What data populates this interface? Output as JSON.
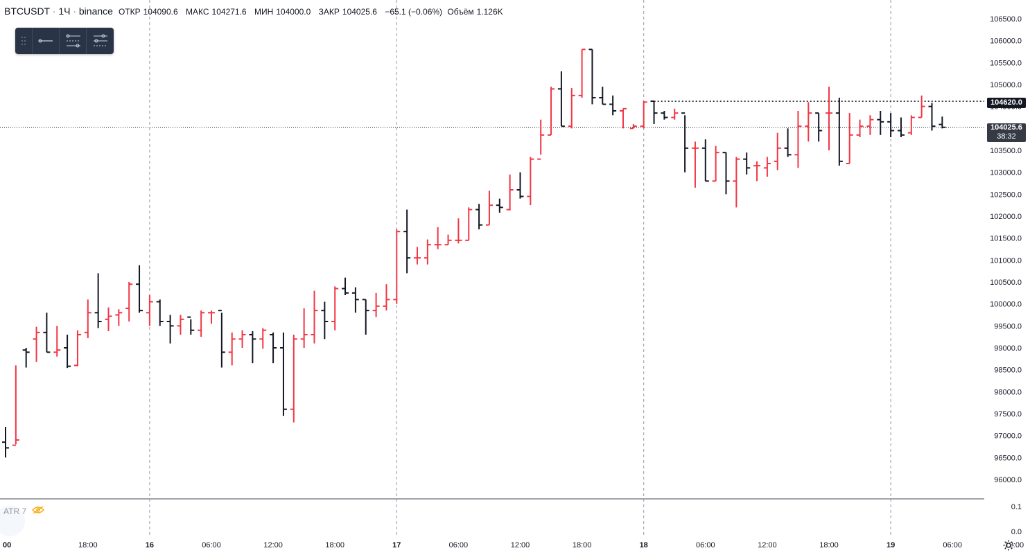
{
  "legend": {
    "symbol": "BTCUSDT",
    "interval": "1Ч",
    "exchange": "binance",
    "open_label": "ОТКР",
    "open": "104090.6",
    "high_label": "МАКС",
    "high": "104271.6",
    "low_label": "МИН",
    "low": "104000.0",
    "close_label": "ЗАКР",
    "close": "104025.6",
    "change": "−65.1 (−0.06%)",
    "volume_label": "Объём",
    "volume": "1.126K"
  },
  "toolbar": {
    "items": [
      "grip-icon",
      "horizontal-line-icon",
      "fib-levels-icon",
      "fib-extension-icon"
    ]
  },
  "indicator": {
    "label": "ATR 7"
  },
  "price_tags": {
    "high_line": "104620.0",
    "last_price": "104025.6",
    "countdown": "38:32"
  },
  "colors": {
    "up": "#f23645",
    "down": "#131722",
    "grid": "#9598a1",
    "axis_text": "#131722"
  },
  "chart_data": {
    "type": "ohlc-bars",
    "ylim": [
      95600,
      106800
    ],
    "yticks": [
      96000,
      96500,
      97000,
      97500,
      98000,
      98500,
      99000,
      99500,
      100000,
      100500,
      101000,
      101500,
      102000,
      102500,
      103000,
      103500,
      104000,
      104500,
      105000,
      105500,
      106000,
      106500
    ],
    "ytick_labels": [
      "96000.0",
      "96500.0",
      "97000.0",
      "97500.0",
      "98000.0",
      "98500.0",
      "99000.0",
      "99500.0",
      "100000.0",
      "100500.0",
      "101000.0",
      "101500.0",
      "102000.0",
      "102500.0",
      "103000.0",
      "103500.0",
      "104000.0",
      "104500.0",
      "105000.0",
      "105500.0",
      "106000.0",
      "106500.0"
    ],
    "indicator_ticks": [
      "0.1",
      "0.0"
    ],
    "xtick_labels": [
      "00",
      "18:00",
      "16",
      "06:00",
      "12:00",
      "18:00",
      "17",
      "06:00",
      "12:00",
      "18:00",
      "18",
      "06:00",
      "12:00",
      "18:00",
      "19",
      "06:00",
      "12:00"
    ],
    "xtick_bar_index": [
      -0.6,
      8,
      14,
      20,
      26,
      32,
      38,
      44,
      50,
      56,
      62,
      68,
      74,
      80,
      86,
      92,
      98
    ],
    "day_separators_bar_index": [
      14,
      38,
      62,
      86
    ],
    "high_line": 104620,
    "last_price": 104025.6,
    "bars": [
      [
        96850,
        97200,
        96500,
        96720
      ],
      [
        96780,
        98600,
        96800,
        96900
      ],
      [
        98950,
        99000,
        98550,
        98900
      ],
      [
        99200,
        99480,
        98680,
        99350
      ],
      [
        99350,
        99800,
        98900,
        98900
      ],
      [
        98900,
        99500,
        98800,
        98950
      ],
      [
        99000,
        99300,
        98540,
        98580
      ],
      [
        98600,
        99400,
        98580,
        99300
      ],
      [
        99350,
        100100,
        99220,
        99800
      ],
      [
        99800,
        100700,
        99450,
        99600
      ],
      [
        99650,
        99920,
        99380,
        99720
      ],
      [
        99750,
        99880,
        99500,
        99800
      ],
      [
        99900,
        100500,
        99600,
        100450
      ],
      [
        100450,
        100880,
        99800,
        99850
      ],
      [
        99800,
        100200,
        99500,
        100050
      ],
      [
        100050,
        100100,
        99500,
        99600
      ],
      [
        99600,
        99750,
        99100,
        99500
      ],
      [
        99500,
        99750,
        99300,
        99650
      ],
      [
        99700,
        99650,
        99300,
        99400
      ],
      [
        99400,
        99850,
        99250,
        99800
      ],
      [
        99800,
        99850,
        99550,
        99800
      ],
      [
        99850,
        99800,
        98550,
        98900
      ],
      [
        98900,
        99350,
        98600,
        99200
      ],
      [
        99200,
        99400,
        99000,
        99300
      ],
      [
        99300,
        99380,
        98650,
        99200
      ],
      [
        99200,
        99450,
        98980,
        99400
      ],
      [
        99300,
        99350,
        98650,
        99000
      ],
      [
        99000,
        99350,
        97450,
        97600
      ],
      [
        97600,
        99300,
        97300,
        99200
      ],
      [
        99200,
        99900,
        99000,
        99300
      ],
      [
        99300,
        100300,
        99100,
        99850
      ],
      [
        99850,
        100050,
        99200,
        99600
      ],
      [
        99600,
        100400,
        99400,
        100350
      ],
      [
        100350,
        100600,
        100200,
        100250
      ],
      [
        100250,
        100380,
        99800,
        100100
      ],
      [
        100100,
        100100,
        99300,
        99850
      ],
      [
        99850,
        100250,
        99700,
        99950
      ],
      [
        99950,
        100450,
        99850,
        100100
      ],
      [
        100100,
        101700,
        100000,
        101650
      ],
      [
        101650,
        102150,
        100700,
        101050
      ],
      [
        101050,
        101300,
        100900,
        101050
      ],
      [
        101050,
        101470,
        100900,
        101350
      ],
      [
        101350,
        101750,
        101250,
        101350
      ],
      [
        101350,
        101580,
        101350,
        101450
      ],
      [
        101450,
        101950,
        101380,
        101450
      ],
      [
        101450,
        102200,
        101450,
        102150
      ],
      [
        102150,
        102280,
        101700,
        101800
      ],
      [
        101800,
        102580,
        101800,
        102250
      ],
      [
        102250,
        102400,
        102080,
        102200
      ],
      [
        102150,
        102950,
        102130,
        102600
      ],
      [
        102600,
        103000,
        102400,
        102450
      ],
      [
        102450,
        103350,
        102250,
        103300
      ],
      [
        103300,
        104200,
        103400,
        103850
      ],
      [
        103850,
        104950,
        103850,
        104900
      ],
      [
        104900,
        105300,
        104050,
        104050
      ],
      [
        104050,
        104920,
        104000,
        104750
      ],
      [
        104750,
        105800,
        104700,
        105800
      ],
      [
        105800,
        105800,
        104550,
        104700
      ],
      [
        104700,
        104950,
        104550,
        104550
      ],
      [
        104550,
        104750,
        104300,
        104400
      ],
      [
        104400,
        104450,
        104000,
        104450
      ],
      [
        104000,
        104100,
        104000,
        104050
      ],
      [
        104050,
        104620,
        104000,
        104600
      ],
      [
        104620,
        104620,
        104100,
        104350
      ],
      [
        104350,
        104400,
        104200,
        104250
      ],
      [
        104250,
        104450,
        104200,
        104350
      ],
      [
        104350,
        104300,
        103000,
        103550
      ],
      [
        103550,
        103700,
        102650,
        103550
      ],
      [
        103550,
        103750,
        102800,
        102800
      ],
      [
        102800,
        103600,
        102800,
        103450
      ],
      [
        103450,
        103450,
        102500,
        102800
      ],
      [
        102800,
        103350,
        102200,
        103300
      ],
      [
        103300,
        103450,
        102950,
        103100
      ],
      [
        103150,
        103250,
        102800,
        103150
      ],
      [
        103100,
        103350,
        102900,
        103200
      ],
      [
        103250,
        103900,
        103050,
        103550
      ],
      [
        103550,
        104000,
        103350,
        103400
      ],
      [
        103400,
        104400,
        103100,
        104050
      ],
      [
        104050,
        104600,
        103700,
        104350
      ],
      [
        104350,
        104350,
        103700,
        103950
      ],
      [
        104350,
        104950,
        103500,
        104350
      ],
      [
        104350,
        104700,
        103150,
        103250
      ],
      [
        103200,
        104350,
        103200,
        103850
      ],
      [
        103850,
        104200,
        103800,
        104050
      ],
      [
        104050,
        104300,
        103850,
        104200
      ],
      [
        104200,
        104400,
        103850,
        104150
      ],
      [
        104150,
        104350,
        103800,
        103950
      ],
      [
        103950,
        104250,
        103800,
        103850
      ],
      [
        103900,
        104300,
        103850,
        104250
      ],
      [
        104250,
        104750,
        104250,
        104500
      ],
      [
        104500,
        104580,
        103950,
        104050
      ],
      [
        104090,
        104270,
        104000,
        104025
      ]
    ]
  }
}
